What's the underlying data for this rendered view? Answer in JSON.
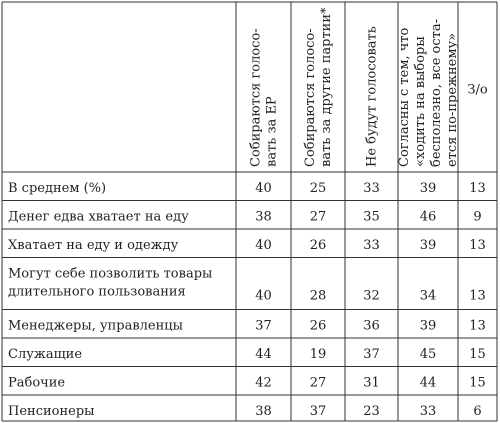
{
  "table": {
    "headers": [
      [
        "Собираются голосо-",
        "вать за ЕР"
      ],
      [
        "Собираются голосо-",
        "вать за другие партии*"
      ],
      [
        "Не будут голосовать"
      ],
      [
        "Согласны с тем, что",
        "«ходить на выборы",
        "бесполезно, все оста-",
        "ется по-прежнему»"
      ],
      [
        "З/о"
      ]
    ],
    "rows": [
      {
        "label": [
          "В среднем (%)"
        ],
        "values": [
          40,
          25,
          33,
          39,
          13
        ]
      },
      {
        "label": [
          "Денег едва хватает на еду"
        ],
        "values": [
          38,
          27,
          35,
          46,
          9
        ]
      },
      {
        "label": [
          "Хватает на еду и одежду"
        ],
        "values": [
          40,
          26,
          33,
          39,
          13
        ]
      },
      {
        "label": [
          "Могут себе позволить товары",
          "длительного пользования"
        ],
        "values": [
          40,
          28,
          32,
          34,
          13
        ]
      },
      {
        "label": [
          "Менеджеры, управленцы"
        ],
        "values": [
          37,
          26,
          36,
          39,
          13
        ]
      },
      {
        "label": [
          "Служащие"
        ],
        "values": [
          44,
          19,
          37,
          45,
          15
        ]
      },
      {
        "label": [
          "Рабочие"
        ],
        "values": [
          42,
          27,
          31,
          44,
          15
        ]
      },
      {
        "label": [
          "Пенсионеры"
        ],
        "values": [
          38,
          37,
          23,
          33,
          6
        ]
      }
    ]
  }
}
